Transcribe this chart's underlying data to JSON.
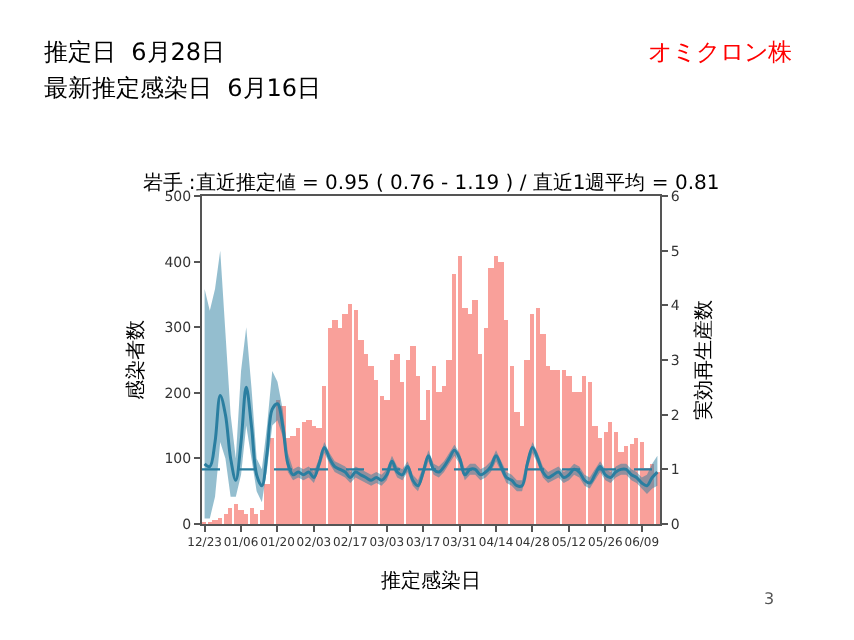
{
  "chart_data": {
    "type": "bar",
    "title": "岩手 :直近推定値 = 0.95 ( 0.76 - 1.19 ) / 直近1週平均 = 0.81",
    "xlabel": "推定感染日",
    "ylabel": "感染者数",
    "y2label": "実効再生産数",
    "annotations": [
      "推定日  6月28日",
      "最新推定感染日  6月16日",
      "オミクロン株",
      "3"
    ],
    "categories": [
      "12/23",
      null,
      null,
      null,
      null,
      null,
      null,
      "01/06",
      null,
      null,
      null,
      null,
      null,
      null,
      "01/20",
      null,
      null,
      null,
      null,
      null,
      null,
      "02/03",
      null,
      null,
      null,
      null,
      null,
      null,
      "02/17",
      null,
      null,
      null,
      null,
      null,
      null,
      "03/03",
      null,
      null,
      null,
      null,
      null,
      null,
      "03/17",
      null,
      null,
      null,
      null,
      null,
      null,
      "03/31",
      null,
      null,
      null,
      null,
      null,
      null,
      "04/14",
      null,
      null,
      null,
      null,
      null,
      null,
      "04/28",
      null,
      null,
      null,
      null,
      null,
      null,
      "05/12",
      null,
      null,
      null,
      null,
      null,
      null,
      "05/26",
      null,
      null,
      null,
      null,
      null,
      null,
      "06/09",
      null,
      null,
      null
    ],
    "series": [
      {
        "color": "#f9a09a",
        "values": [
          2,
          3,
          5,
          8,
          15,
          25,
          30,
          20,
          15,
          25,
          15,
          20,
          60,
          130,
          190,
          180,
          130,
          135,
          145,
          155,
          160,
          150,
          145,
          210,
          300,
          310,
          300,
          320,
          335,
          325,
          280,
          260,
          240,
          220,
          195,
          190,
          250,
          260,
          215,
          250,
          270,
          225,
          160,
          205,
          240,
          200,
          210,
          250,
          380,
          410,
          330,
          320,
          340,
          260,
          300,
          390,
          410,
          400,
          310,
          240,
          170,
          150,
          250,
          320,
          330,
          290,
          240,
          235,
          235,
          235,
          225,
          200,
          200,
          225,
          215,
          150,
          130,
          140,
          155,
          140,
          110,
          118,
          122,
          130,
          125,
          85,
          90,
          80
        ]
      },
      {
        "type": "line",
        "axis": "y2",
        "color": "#2a7ea0",
        "values": [
          1.1,
          1.05,
          1.5,
          2.35,
          2.0,
          1.2,
          0.8,
          1.5,
          2.5,
          1.8,
          0.9,
          0.7,
          1.3,
          2.1,
          2.2,
          1.8,
          1.1,
          0.9,
          0.95,
          0.9,
          0.95,
          0.85,
          1.1,
          1.4,
          1.2,
          1.05,
          1.0,
          0.95,
          0.85,
          0.95,
          0.9,
          0.85,
          0.8,
          0.85,
          0.8,
          0.9,
          1.15,
          0.95,
          0.9,
          1.05,
          0.8,
          0.7,
          0.95,
          1.25,
          1.0,
          0.95,
          1.05,
          1.2,
          1.35,
          1.2,
          0.9,
          1.0,
          1.0,
          0.9,
          0.95,
          1.05,
          1.25,
          1.05,
          0.85,
          0.8,
          0.7,
          0.7,
          1.1,
          1.4,
          1.2,
          0.95,
          0.85,
          0.9,
          0.95,
          0.85,
          0.9,
          1.0,
          0.95,
          0.8,
          0.75,
          0.9,
          1.05,
          0.9,
          0.85,
          0.95,
          1.0,
          1.0,
          0.9,
          0.85,
          0.75,
          0.7,
          0.85,
          0.95
        ],
        "lower": [
          0.1,
          0.1,
          0.5,
          1.5,
          1.2,
          0.5,
          0.5,
          0.9,
          1.8,
          1.2,
          0.6,
          0.4,
          1.0,
          1.8,
          1.9,
          1.6,
          0.95,
          0.8,
          0.85,
          0.8,
          0.85,
          0.75,
          1.0,
          1.3,
          1.1,
          0.95,
          0.9,
          0.85,
          0.75,
          0.85,
          0.8,
          0.75,
          0.7,
          0.75,
          0.7,
          0.8,
          1.05,
          0.85,
          0.8,
          0.95,
          0.7,
          0.6,
          0.85,
          1.15,
          0.9,
          0.85,
          0.95,
          1.1,
          1.25,
          1.1,
          0.8,
          0.9,
          0.9,
          0.8,
          0.85,
          0.95,
          1.15,
          0.95,
          0.75,
          0.7,
          0.6,
          0.6,
          1.0,
          1.3,
          1.1,
          0.85,
          0.75,
          0.8,
          0.85,
          0.75,
          0.8,
          0.9,
          0.85,
          0.7,
          0.65,
          0.8,
          0.95,
          0.8,
          0.75,
          0.85,
          0.9,
          0.9,
          0.8,
          0.75,
          0.65,
          0.55,
          0.65,
          0.7
        ],
        "upper": [
          4.3,
          3.9,
          4.3,
          5.0,
          3.5,
          2.0,
          1.2,
          2.8,
          3.6,
          2.5,
          1.2,
          1.0,
          1.8,
          2.8,
          2.6,
          2.1,
          1.3,
          1.0,
          1.05,
          1.0,
          1.05,
          0.95,
          1.2,
          1.5,
          1.3,
          1.15,
          1.1,
          1.05,
          0.95,
          1.05,
          1.0,
          0.95,
          0.9,
          0.95,
          0.9,
          1.0,
          1.25,
          1.05,
          1.0,
          1.15,
          0.9,
          0.8,
          1.05,
          1.35,
          1.1,
          1.05,
          1.15,
          1.3,
          1.45,
          1.3,
          1.0,
          1.1,
          1.1,
          1.0,
          1.05,
          1.15,
          1.35,
          1.15,
          0.95,
          0.9,
          0.8,
          0.8,
          1.2,
          1.5,
          1.3,
          1.05,
          0.95,
          1.0,
          1.05,
          0.95,
          1.0,
          1.1,
          1.05,
          0.9,
          0.85,
          1.0,
          1.15,
          1.0,
          0.95,
          1.05,
          1.1,
          1.1,
          1.0,
          0.95,
          0.85,
          0.9,
          1.1,
          1.25
        ]
      }
    ],
    "ref_lines": [
      {
        "axis": "y2",
        "value": 1,
        "color": "#2a7ea0",
        "line_style": "dashed"
      }
    ],
    "ylim": [
      0,
      500
    ],
    "yticks": [
      0,
      100,
      200,
      300,
      400,
      500
    ],
    "y2lim": [
      0,
      6
    ],
    "y2ticks": [
      0,
      1,
      2,
      3,
      4,
      5,
      6
    ]
  }
}
